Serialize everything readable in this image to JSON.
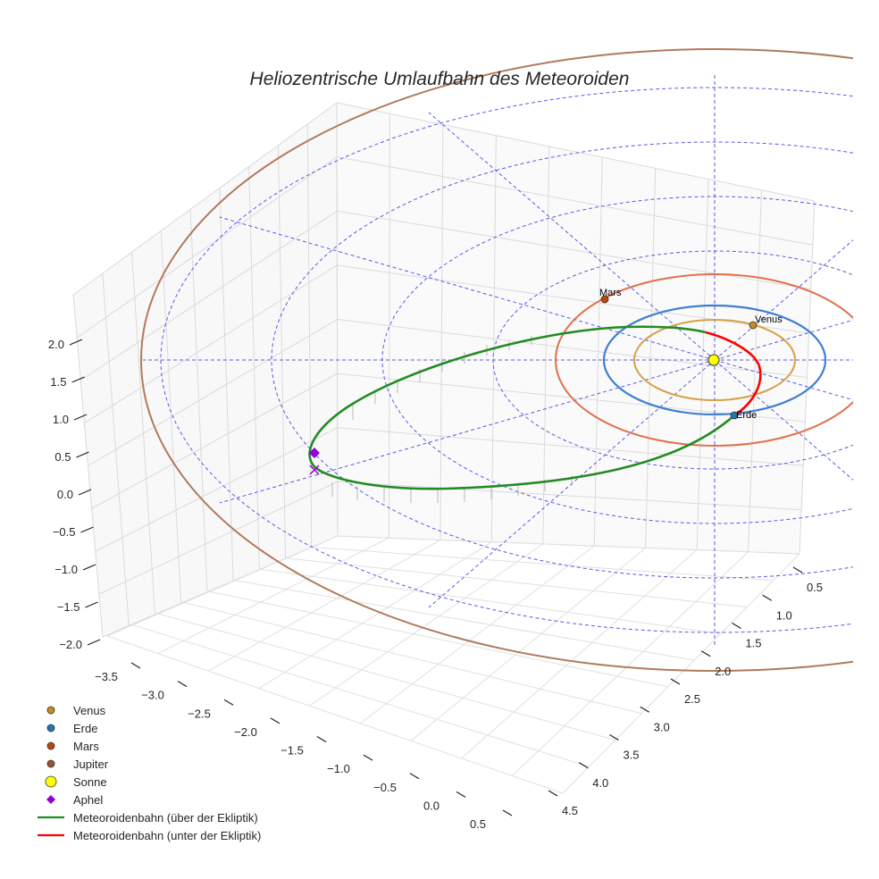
{
  "chart_data": {
    "type": "line-3d",
    "title": "Heliozentrische Umlaufbahn des Meteoroiden",
    "axes": {
      "x": {
        "ticks": [
          "−3.5",
          "−3.0",
          "−2.5",
          "−2.0",
          "−1.5",
          "−1.0",
          "−0.5",
          "0.0",
          "0.5"
        ],
        "range": [
          -3.6,
          0.6
        ]
      },
      "y": {
        "ticks": [
          "0.5",
          "1.0",
          "1.5",
          "2.0",
          "2.5",
          "3.0",
          "3.5",
          "4.0",
          "4.5"
        ],
        "range": [
          0.3,
          4.6
        ]
      },
      "z": {
        "ticks": [
          "2.0",
          "1.5",
          "1.0",
          "0.5",
          "0.0",
          "−0.5",
          "−1.0",
          "−1.5",
          "−2.0"
        ],
        "range": [
          -2.1,
          2.4
        ]
      }
    },
    "planets": [
      {
        "name": "Venus",
        "color": "#d4a147",
        "marker": "#c98a1e",
        "orbit_radius_au": 0.72,
        "label": "Venus"
      },
      {
        "name": "Erde",
        "color": "#3f7fd0",
        "marker": "#1f77b4",
        "orbit_radius_au": 1.0,
        "label": "Erde"
      },
      {
        "name": "Mars",
        "color": "#e0704a",
        "marker": "#c1440e",
        "orbit_radius_au": 1.52,
        "label": "Mars"
      },
      {
        "name": "Jupiter",
        "color": "#b07a5b",
        "marker": "#a0522d",
        "orbit_radius_au": 5.2,
        "label": ""
      }
    ],
    "sun": {
      "name": "Sonne",
      "color": "#ffff00"
    },
    "aphel": {
      "name": "Aphel",
      "color": "#9400d3"
    },
    "meteoroid": {
      "series": [
        {
          "name": "Meteoroidenbahn (über der Ekliptik)",
          "color": "#228b22"
        },
        {
          "name": "Meteoroidenbahn (unter der Ekliptik)",
          "color": "#ff0000"
        }
      ]
    },
    "legend": {
      "position": "bottom-left",
      "entries": [
        {
          "label": "Venus",
          "kind": "dot",
          "color": "#c98a1e"
        },
        {
          "label": "Erde",
          "kind": "dot",
          "color": "#1f77b4"
        },
        {
          "label": "Mars",
          "kind": "dot",
          "color": "#c1440e"
        },
        {
          "label": "Jupiter",
          "kind": "dot",
          "color": "#a0522d"
        },
        {
          "label": "Sonne",
          "kind": "bigdot",
          "color": "#ffff00"
        },
        {
          "label": "Aphel",
          "kind": "diamond",
          "color": "#9400d3"
        },
        {
          "label": "Meteoroidenbahn (über der Ekliptik)",
          "kind": "line",
          "color": "#228b22"
        },
        {
          "label": "Meteoroidenbahn (unter der Ekliptik)",
          "kind": "line",
          "color": "#ff0000"
        }
      ]
    }
  }
}
